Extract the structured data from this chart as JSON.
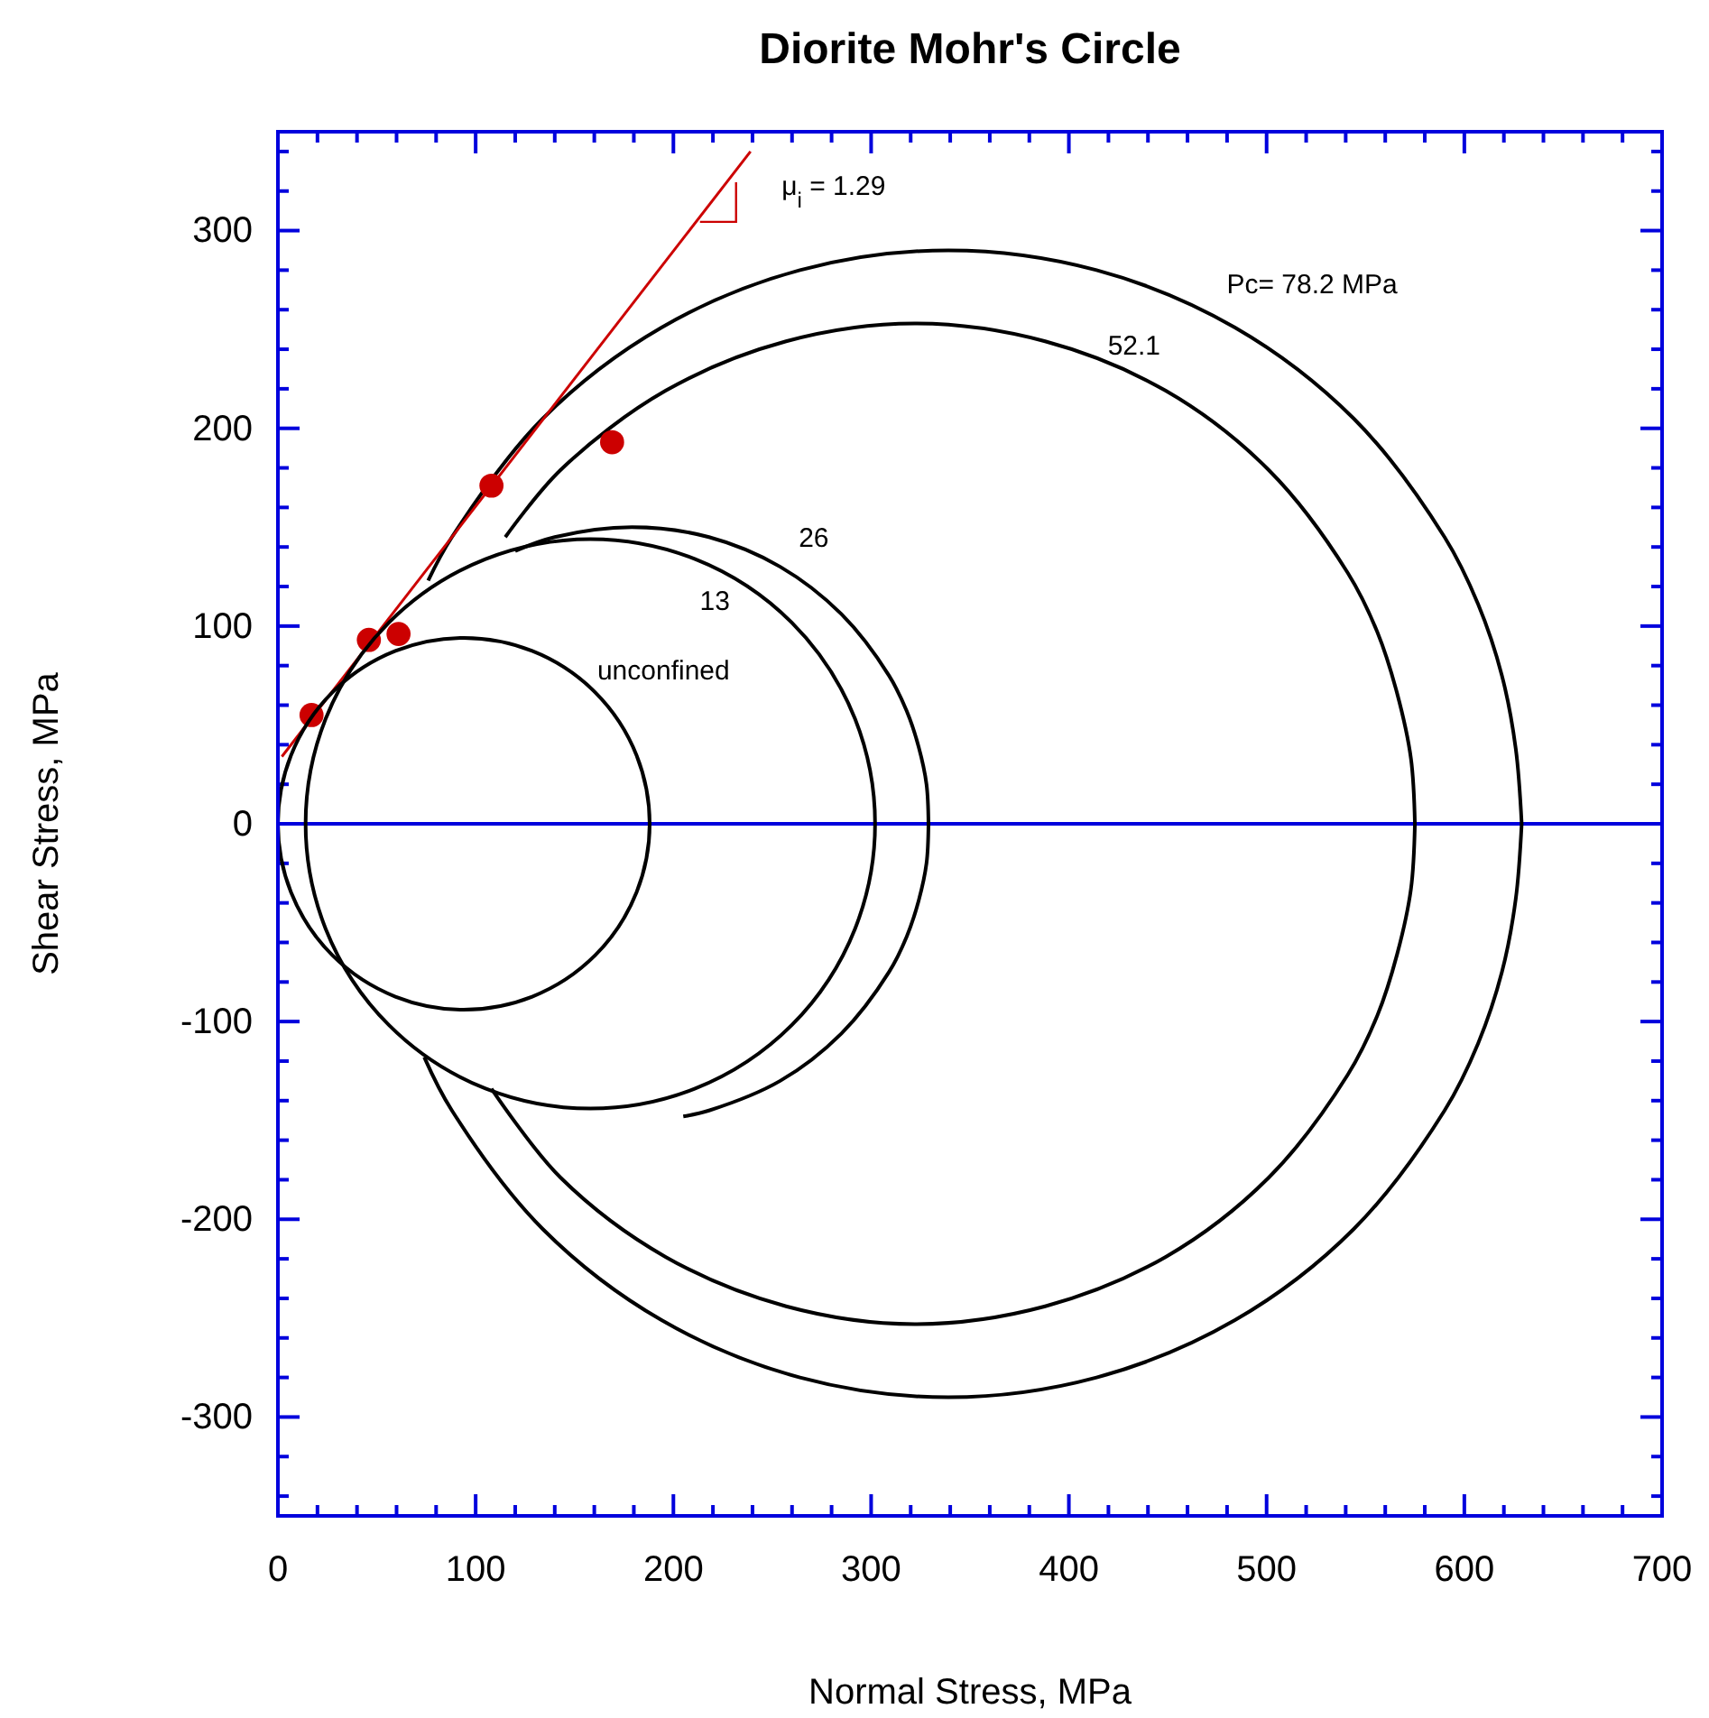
{
  "chart_data": {
    "type": "line",
    "title": "Diorite Mohr's Circle",
    "xlabel": "Normal Stress, MPa",
    "ylabel": "Shear Stress, MPa",
    "xlim": [
      0,
      700
    ],
    "ylim": [
      -350,
      350
    ],
    "xticks": [
      0,
      {
        "value": 20,
        "label": null
      },
      {
        "value": 40,
        "label": null
      },
      {
        "value": 60,
        "label": null
      },
      {
        "value": 80,
        "label": null
      },
      100,
      {
        "value": 120,
        "label": null
      },
      {
        "value": 140,
        "label": null
      },
      {
        "value": 160,
        "label": null
      },
      {
        "value": 180,
        "label": null
      },
      200,
      {
        "value": 220,
        "label": null
      },
      {
        "value": 240,
        "label": null
      },
      {
        "value": 260,
        "label": null
      },
      {
        "value": 280,
        "label": null
      },
      300,
      {
        "value": 320,
        "label": null
      },
      {
        "value": 340,
        "label": null
      },
      {
        "value": 360,
        "label": null
      },
      {
        "value": 380,
        "label": null
      },
      400,
      {
        "value": 420,
        "label": null
      },
      {
        "value": 440,
        "label": null
      },
      {
        "value": 460,
        "label": null
      },
      {
        "value": 480,
        "label": null
      },
      500,
      {
        "value": 520,
        "label": null
      },
      {
        "value": 540,
        "label": null
      },
      {
        "value": 560,
        "label": null
      },
      {
        "value": 580,
        "label": null
      },
      600,
      {
        "value": 620,
        "label": null
      },
      {
        "value": 640,
        "label": null
      },
      {
        "value": 660,
        "label": null
      },
      {
        "value": 680,
        "label": null
      },
      700
    ],
    "yticks": [
      {
        "value": -340,
        "label": null
      },
      {
        "value": -320,
        "label": null
      },
      -300,
      {
        "value": -280,
        "label": null
      },
      {
        "value": -260,
        "label": null
      },
      {
        "value": -240,
        "label": null
      },
      {
        "value": -220,
        "label": null
      },
      -200,
      {
        "value": -180,
        "label": null
      },
      {
        "value": -160,
        "label": null
      },
      {
        "value": -140,
        "label": null
      },
      {
        "value": -120,
        "label": null
      },
      -100,
      {
        "value": -80,
        "label": null
      },
      {
        "value": -60,
        "label": null
      },
      {
        "value": -40,
        "label": null
      },
      {
        "value": -20,
        "label": null
      },
      0,
      {
        "value": 20,
        "label": null
      },
      {
        "value": 40,
        "label": null
      },
      {
        "value": 60,
        "label": null
      },
      {
        "value": 80,
        "label": null
      },
      100,
      {
        "value": 120,
        "label": null
      },
      {
        "value": 140,
        "label": null
      },
      {
        "value": 160,
        "label": null
      },
      {
        "value": 180,
        "label": null
      },
      200,
      {
        "value": 220,
        "label": null
      },
      {
        "value": 240,
        "label": null
      },
      {
        "value": 260,
        "label": null
      },
      {
        "value": 280,
        "label": null
      },
      300,
      {
        "value": 320,
        "label": null
      },
      {
        "value": 340,
        "label": null
      }
    ],
    "series": [
      {
        "color": "#000000",
        "x": [
          120,
          140,
          179,
          218,
          254,
          285,
          309,
          318,
          324,
          328,
          329
        ],
        "values": [
          138,
          145,
          150,
          145,
          130,
          106,
          75,
          57,
          39,
          20,
          0
        ]
      },
      {
        "color": "#000000",
        "x": [
          205,
          218,
          254,
          285,
          309,
          318,
          324,
          328,
          329
        ],
        "values": [
          -148,
          -145,
          -130,
          -106,
          -75,
          -57,
          -39,
          -20,
          0
        ]
      },
      {
        "color": "#000000",
        "x": [
          115,
          143,
          196,
          257,
          322,
          388,
          449,
          501,
          541,
          556,
          566,
          573,
          575
        ],
        "values": [
          145,
          179,
          219,
          244,
          253,
          244,
          219,
          179,
          127,
          97,
          66,
          33,
          0
        ]
      },
      {
        "color": "#000000",
        "x": [
          108,
          143,
          196,
          257,
          322,
          388,
          449,
          501,
          541,
          556,
          566,
          573,
          575
        ],
        "values": [
          -134,
          -179,
          -219,
          -244,
          -253,
          -244,
          -219,
          -179,
          -127,
          -97,
          -66,
          -33,
          0
        ]
      },
      {
        "color": "#000000",
        "x": [
          76,
          88,
          134,
          194,
          264,
          339,
          414,
          484,
          544,
          590,
          607,
          619,
          626,
          629
        ],
        "values": [
          123,
          145,
          205,
          251,
          280,
          290,
          280,
          251,
          205,
          145,
          111,
          75,
          38,
          0
        ]
      },
      {
        "color": "#000000",
        "x": [
          74,
          88,
          134,
          194,
          264,
          339,
          414,
          484,
          544,
          590,
          607,
          619,
          626,
          629
        ],
        "values": [
          -118,
          -145,
          -205,
          -251,
          -280,
          -290,
          -280,
          -251,
          -205,
          -145,
          -111,
          -75,
          -38,
          0
        ]
      },
      {
        "color": "#cc0000",
        "x": [
          2,
          239
        ],
        "values": [
          34,
          340
        ]
      },
      {
        "type": "scatter",
        "color": "#cc0000",
        "marker": "circle",
        "x": [
          17,
          46,
          61,
          108,
          169
        ],
        "values": [
          55,
          93,
          96,
          171,
          193
        ]
      }
    ],
    "ref_lines": [
      {
        "axis": "y",
        "value": 0,
        "color": "#0000dd"
      }
    ],
    "annotations": [
      "μ$_{i}$ = 1.29",
      "Pc= 78.2 MPa",
      "52.1",
      "26",
      "13",
      "unconfined"
    ]
  }
}
